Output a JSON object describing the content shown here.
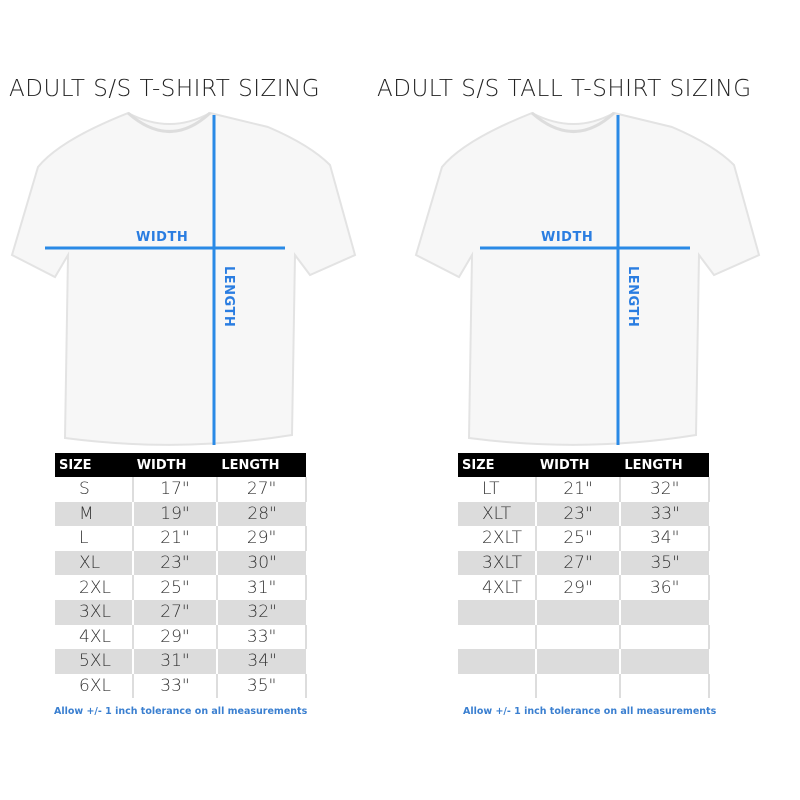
{
  "left": {
    "title": "ADULT S/S T-SHIRT SIZING",
    "width_label": "WIDTH",
    "length_label": "LENGTH",
    "headers": [
      "SIZE",
      "WIDTH",
      "LENGTH"
    ],
    "rows": [
      [
        "S",
        "17\"",
        "27\""
      ],
      [
        "M",
        "19\"",
        "28\""
      ],
      [
        "L",
        "21\"",
        "29\""
      ],
      [
        "XL",
        "23\"",
        "30\""
      ],
      [
        "2XL",
        "25\"",
        "31\""
      ],
      [
        "3XL",
        "27\"",
        "32\""
      ],
      [
        "4XL",
        "29\"",
        "33\""
      ],
      [
        "5XL",
        "31\"",
        "34\""
      ],
      [
        "6XL",
        "33\"",
        "35\""
      ]
    ],
    "note": "Allow +/- 1 inch tolerance on all measurements"
  },
  "right": {
    "title": "ADULT S/S TALL T-SHIRT SIZING",
    "width_label": "WIDTH",
    "length_label": "LENGTH",
    "headers": [
      "SIZE",
      "WIDTH",
      "LENGTH"
    ],
    "rows": [
      [
        "LT",
        "21\"",
        "32\""
      ],
      [
        "XLT",
        "23\"",
        "33\""
      ],
      [
        "2XLT",
        "25\"",
        "34\""
      ],
      [
        "3XLT",
        "27\"",
        "35\""
      ],
      [
        "4XLT",
        "29\"",
        "36\""
      ],
      [
        "",
        "",
        ""
      ],
      [
        "",
        "",
        ""
      ],
      [
        "",
        "",
        ""
      ],
      [
        "",
        "",
        ""
      ]
    ],
    "note": "Allow +/- 1 inch tolerance on all measurements"
  },
  "colors": {
    "measure_line": "#2a8ae6",
    "header_bg": "#000000",
    "note": "#3a7fd0"
  }
}
